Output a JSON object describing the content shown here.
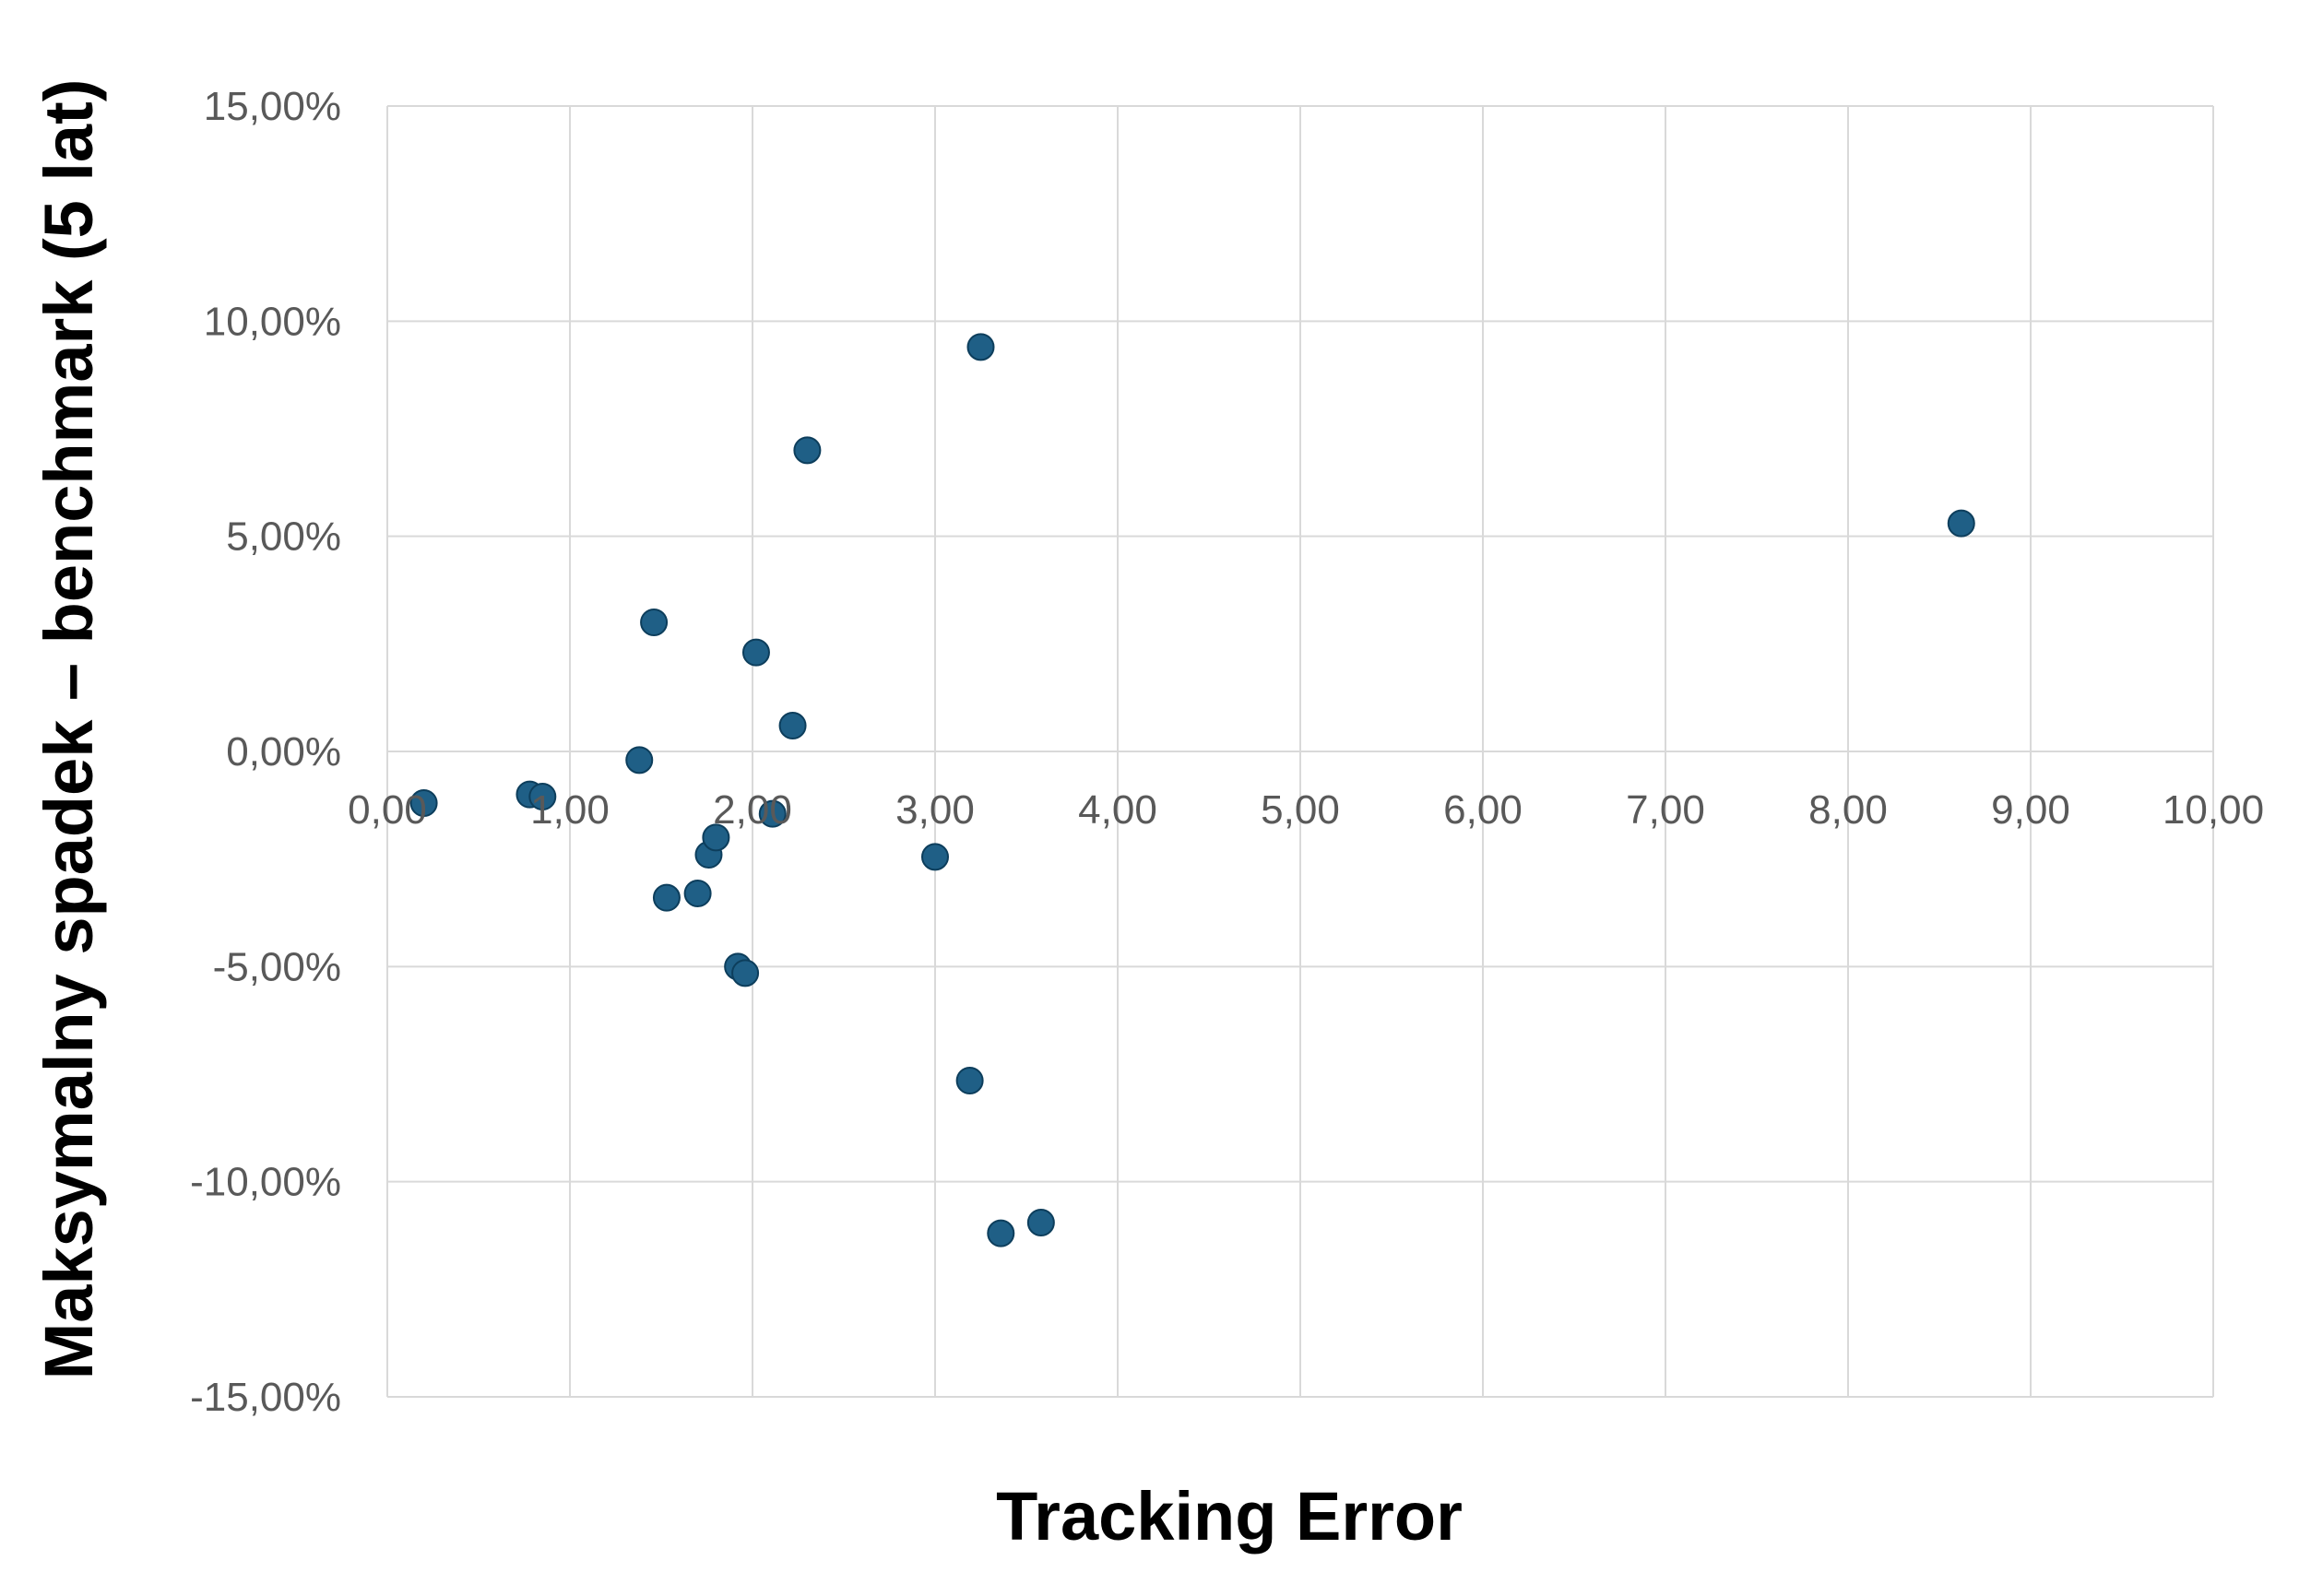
{
  "chart_data": {
    "type": "scatter",
    "title": "",
    "xlabel": "Tracking Error",
    "ylabel": "Maksymalny spadek – benchmark (5 lat)",
    "xlim": [
      0,
      10
    ],
    "ylim": [
      -15,
      15
    ],
    "x_ticks": [
      0,
      1,
      2,
      3,
      4,
      5,
      6,
      7,
      8,
      9,
      10
    ],
    "x_tick_labels": [
      "0,00",
      "1,00",
      "2,00",
      "3,00",
      "4,00",
      "5,00",
      "6,00",
      "7,00",
      "8,00",
      "9,00",
      "10,00"
    ],
    "y_ticks": [
      15,
      10,
      5,
      0,
      -5,
      -10,
      -15
    ],
    "y_tick_labels": [
      "15,00%",
      "10,00%",
      "5,00%",
      "0,00%",
      "-5,00%",
      "-10,00%",
      "-15,00%"
    ],
    "grid": true,
    "legend": "none",
    "marker_color": "#1f5f86",
    "series": [
      {
        "x": [
          0.2,
          0.78,
          0.85,
          1.38,
          1.46,
          1.53,
          1.7,
          1.76,
          1.8,
          1.92,
          1.96,
          2.02,
          2.11,
          2.22,
          2.3,
          3.0,
          3.19,
          3.25,
          3.36,
          3.58,
          8.62
        ],
        "y": [
          -1.2,
          -1.0,
          -1.05,
          -0.2,
          3.0,
          -3.4,
          -3.3,
          -2.4,
          -2.0,
          -5.0,
          -5.15,
          2.3,
          -1.45,
          0.6,
          7.0,
          -2.45,
          -7.65,
          9.4,
          -11.2,
          -10.95,
          5.3
        ]
      }
    ]
  }
}
